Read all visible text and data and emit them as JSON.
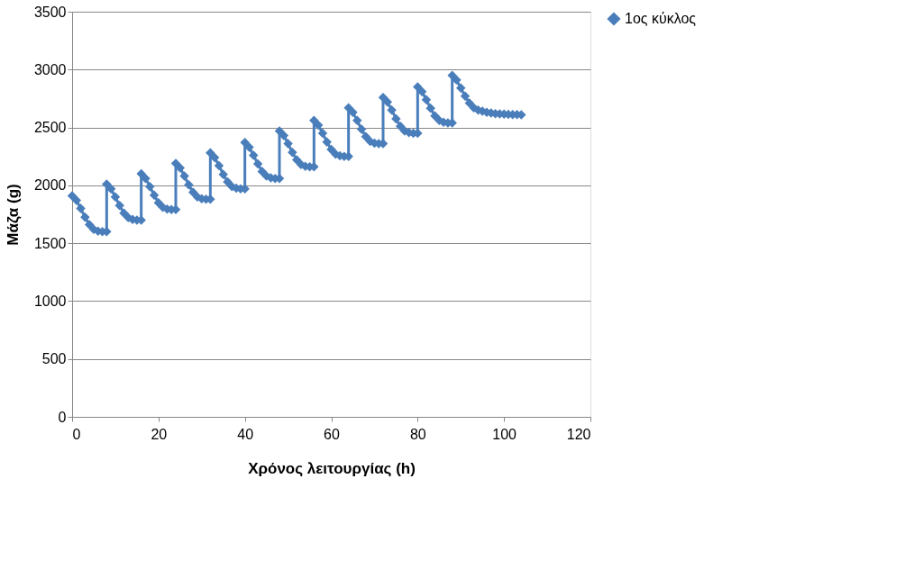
{
  "chart_data": {
    "type": "line",
    "xlabel": "Χρόνος λειτουργίας (h)",
    "ylabel": "Μάζα (g)",
    "xlim": [
      0,
      120
    ],
    "xticks": [
      0,
      20,
      40,
      60,
      80,
      100,
      120
    ],
    "ylim": [
      0,
      3500
    ],
    "yticks": [
      0,
      500,
      1000,
      1500,
      2000,
      2500,
      3000,
      3500
    ],
    "grid": "y",
    "legend": "right",
    "marker": "diamond",
    "line_style": "solid",
    "series": [
      {
        "name": "1ος κύκλος",
        "color": "#4a7ebb",
        "x": [
          0,
          1,
          2,
          3,
          4,
          5,
          6,
          7,
          8,
          8,
          9,
          10,
          11,
          12,
          13,
          14,
          15,
          16,
          16,
          17,
          18,
          19,
          20,
          21,
          22,
          23,
          24,
          24,
          25,
          26,
          27,
          28,
          29,
          30,
          31,
          32,
          32,
          33,
          34,
          35,
          36,
          37,
          38,
          39,
          40,
          40,
          41,
          42,
          43,
          44,
          45,
          46,
          47,
          48,
          48,
          49,
          50,
          51,
          52,
          53,
          54,
          55,
          56,
          56,
          57,
          58,
          59,
          60,
          61,
          62,
          63,
          64,
          64,
          65,
          66,
          67,
          68,
          69,
          70,
          71,
          72,
          72,
          73,
          74,
          75,
          76,
          77,
          78,
          79,
          80,
          80,
          81,
          82,
          83,
          84,
          85,
          86,
          87,
          88,
          88,
          89,
          90,
          91,
          92,
          93,
          94,
          95,
          96,
          97,
          98,
          99,
          100,
          101,
          102,
          103,
          104
        ],
        "values": [
          1910,
          1870,
          1800,
          1725,
          1660,
          1620,
          1605,
          1600,
          1600,
          2010,
          1970,
          1900,
          1825,
          1760,
          1720,
          1705,
          1700,
          1700,
          2100,
          2060,
          1990,
          1915,
          1850,
          1810,
          1795,
          1790,
          1790,
          2190,
          2150,
          2080,
          2005,
          1940,
          1900,
          1885,
          1880,
          1880,
          2280,
          2240,
          2170,
          2095,
          2030,
          1990,
          1975,
          1970,
          1970,
          2370,
          2330,
          2260,
          2185,
          2120,
          2080,
          2065,
          2060,
          2060,
          2470,
          2430,
          2360,
          2285,
          2220,
          2180,
          2165,
          2160,
          2160,
          2560,
          2520,
          2450,
          2375,
          2310,
          2270,
          2255,
          2250,
          2250,
          2670,
          2630,
          2560,
          2485,
          2420,
          2380,
          2365,
          2360,
          2360,
          2760,
          2720,
          2650,
          2575,
          2510,
          2470,
          2455,
          2450,
          2450,
          2850,
          2810,
          2740,
          2665,
          2600,
          2560,
          2545,
          2540,
          2540,
          2950,
          2910,
          2840,
          2770,
          2710,
          2670,
          2650,
          2640,
          2630,
          2625,
          2620,
          2618,
          2615,
          2613,
          2612,
          2611,
          2610
        ]
      }
    ]
  }
}
